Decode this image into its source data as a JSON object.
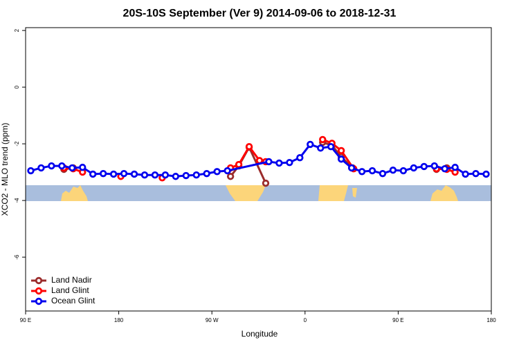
{
  "chart_data": {
    "type": "line",
    "title": "20S-10S September (Ver 9)   2014-09-06 to 2018-12-31",
    "xlabel": "Longitude",
    "ylabel": "XCO2 - MLO trend (ppm)",
    "xlim": [
      90,
      540
    ],
    "ylim": [
      -7.9,
      2.1
    ],
    "xticks": [
      {
        "value": 90,
        "label": "90 E"
      },
      {
        "value": 180,
        "label": "180"
      },
      {
        "value": 270,
        "label": "90 W"
      },
      {
        "value": 360,
        "label": "0"
      },
      {
        "value": 450,
        "label": "90 E"
      },
      {
        "value": 540,
        "label": "180"
      }
    ],
    "yticks": [
      2,
      0,
      -2,
      -4,
      -6
    ],
    "legend": "bottom-left",
    "series": [
      {
        "name": "Land Nadir",
        "color": "#9b2c2c",
        "x": [
          127,
          136,
          null,
          288,
          296,
          306,
          322,
          null,
          377,
          386,
          395,
          406,
          null,
          487,
          497
        ],
        "values": [
          -2.9,
          -2.85,
          null,
          -3.15,
          -2.78,
          -2.12,
          -3.39,
          null,
          -1.95,
          -2.05,
          -2.46,
          -2.85,
          null,
          -2.9,
          -2.85
        ]
      },
      {
        "name": "Land Glint",
        "color": "#ff0000",
        "x": [
          127,
          136,
          145,
          null,
          182,
          null,
          222,
          null,
          288,
          296,
          306,
          316,
          322,
          null,
          377,
          386,
          395,
          407,
          null,
          487,
          497,
          505
        ],
        "values": [
          -2.85,
          -2.88,
          -3.0,
          null,
          -3.15,
          null,
          -3.2,
          null,
          -2.85,
          -2.73,
          -2.1,
          -2.59,
          -2.63,
          null,
          -1.85,
          -1.98,
          -2.24,
          -2.88,
          null,
          -2.88,
          -2.9,
          -3.0
        ]
      },
      {
        "name": "Ocean Glint",
        "color": "#0000ee",
        "x": [
          95,
          105,
          115,
          125,
          135,
          145,
          155,
          165,
          175,
          185,
          195,
          205,
          215,
          225,
          235,
          245,
          255,
          265,
          275,
          285,
          325,
          335,
          345,
          355,
          365,
          375,
          385,
          395,
          405,
          415,
          425,
          435,
          445,
          455,
          465,
          475,
          485,
          495,
          505,
          515,
          525,
          535
        ],
        "values": [
          -2.95,
          -2.85,
          -2.78,
          -2.78,
          -2.85,
          -2.83,
          -3.07,
          -3.05,
          -3.07,
          -3.05,
          -3.07,
          -3.1,
          -3.1,
          -3.1,
          -3.15,
          -3.12,
          -3.1,
          -3.05,
          -2.98,
          -2.95,
          -2.63,
          -2.68,
          -2.66,
          -2.49,
          -2.02,
          -2.15,
          -2.1,
          -2.54,
          -2.85,
          -2.98,
          -2.95,
          -3.05,
          -2.93,
          -2.95,
          -2.85,
          -2.8,
          -2.78,
          -2.88,
          -2.83,
          -3.07,
          -3.05,
          -3.07
        ]
      }
    ]
  }
}
